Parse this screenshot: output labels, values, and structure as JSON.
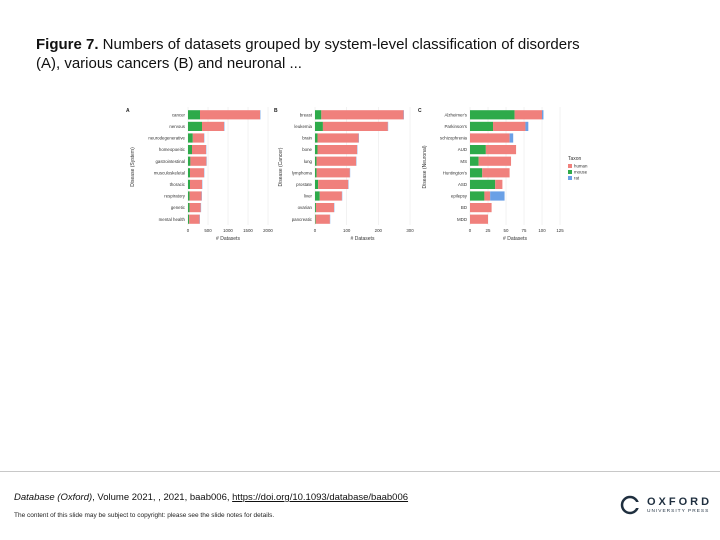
{
  "slide": {
    "title_bold": "Figure 7.",
    "title_rest": " Numbers of datasets grouped by system-level classification of disorders (A), various cancers (B) and neuronal ...",
    "citation_journal": "Database (Oxford)",
    "citation_rest": ", Volume 2021, , 2021, baab006, ",
    "citation_link": "https://doi.org/10.1093/database/baab006",
    "copyright": "The content of this slide may be subject to copyright: please see the slide notes for details.",
    "logo_word": "OXFORD",
    "logo_sub": "UNIVERSITY PRESS"
  },
  "colors": {
    "human": "#f0807c",
    "mouse": "#2eaa4a",
    "rat": "#6aa0e6"
  },
  "chart_data": [
    {
      "type": "bar",
      "panel": "A",
      "stacked": true,
      "orientation": "horizontal",
      "ylabel": "Disease (System)",
      "xlabel": "# Datasets",
      "xlim": [
        0,
        2000
      ],
      "xticks": [
        "0",
        "500",
        "1000",
        "1500",
        "2000"
      ],
      "categories": [
        "cancer",
        "nervous",
        "neurodegenerative",
        "homeopoeitic",
        "gastrointestinal",
        "musculoskeletal",
        "thoracic",
        "respiratory",
        "genetic",
        "mental health"
      ],
      "series": [
        {
          "name": "mouse",
          "values": [
            300,
            350,
            120,
            100,
            60,
            50,
            50,
            40,
            40,
            30
          ]
        },
        {
          "name": "human",
          "values": [
            1500,
            550,
            280,
            350,
            400,
            350,
            300,
            300,
            280,
            260
          ]
        },
        {
          "name": "rat",
          "values": [
            10,
            10,
            5,
            5,
            5,
            5,
            5,
            5,
            5,
            5
          ]
        }
      ]
    },
    {
      "type": "bar",
      "panel": "B",
      "stacked": true,
      "orientation": "horizontal",
      "ylabel": "Disease (Cancer)",
      "xlabel": "# Datasets",
      "xlim": [
        0,
        300
      ],
      "xticks": [
        "0",
        "100",
        "200",
        "300"
      ],
      "categories": [
        "breast",
        "leukemia",
        "brain",
        "bone",
        "lung",
        "lymphoma",
        "prostate",
        "liver",
        "ovarian",
        "pancreatic"
      ],
      "series": [
        {
          "name": "mouse",
          "values": [
            20,
            25,
            8,
            8,
            5,
            5,
            10,
            15,
            3,
            2
          ]
        },
        {
          "name": "human",
          "values": [
            260,
            205,
            130,
            125,
            125,
            105,
            95,
            70,
            57,
            45
          ]
        },
        {
          "name": "rat",
          "values": [
            1,
            1,
            1,
            1,
            1,
            1,
            1,
            1,
            1,
            1
          ]
        }
      ]
    },
    {
      "type": "bar",
      "panel": "C",
      "stacked": true,
      "orientation": "horizontal",
      "ylabel": "Disease (Neuronal)",
      "xlabel": "# Datasets",
      "xlim": [
        0,
        125
      ],
      "xticks": [
        "0",
        "25",
        "50",
        "75",
        "100",
        "125"
      ],
      "categories": [
        "Alzheimer's",
        "Parkinson's",
        "schizophrenia",
        "AUD",
        "MS",
        "Huntington's",
        "ASD",
        "epilepsy",
        "BD",
        "MDD"
      ],
      "series": [
        {
          "name": "mouse",
          "values": [
            62,
            32,
            0,
            22,
            12,
            17,
            35,
            20,
            0,
            0
          ]
        },
        {
          "name": "human",
          "values": [
            38,
            45,
            55,
            42,
            45,
            38,
            10,
            8,
            30,
            25
          ]
        },
        {
          "name": "rat",
          "values": [
            2,
            4,
            5,
            0,
            0,
            0,
            0,
            20,
            0,
            0
          ]
        }
      ],
      "legend": {
        "title": "Taxon",
        "entries": [
          "human",
          "mouse",
          "rat"
        ],
        "position": "right"
      }
    }
  ]
}
